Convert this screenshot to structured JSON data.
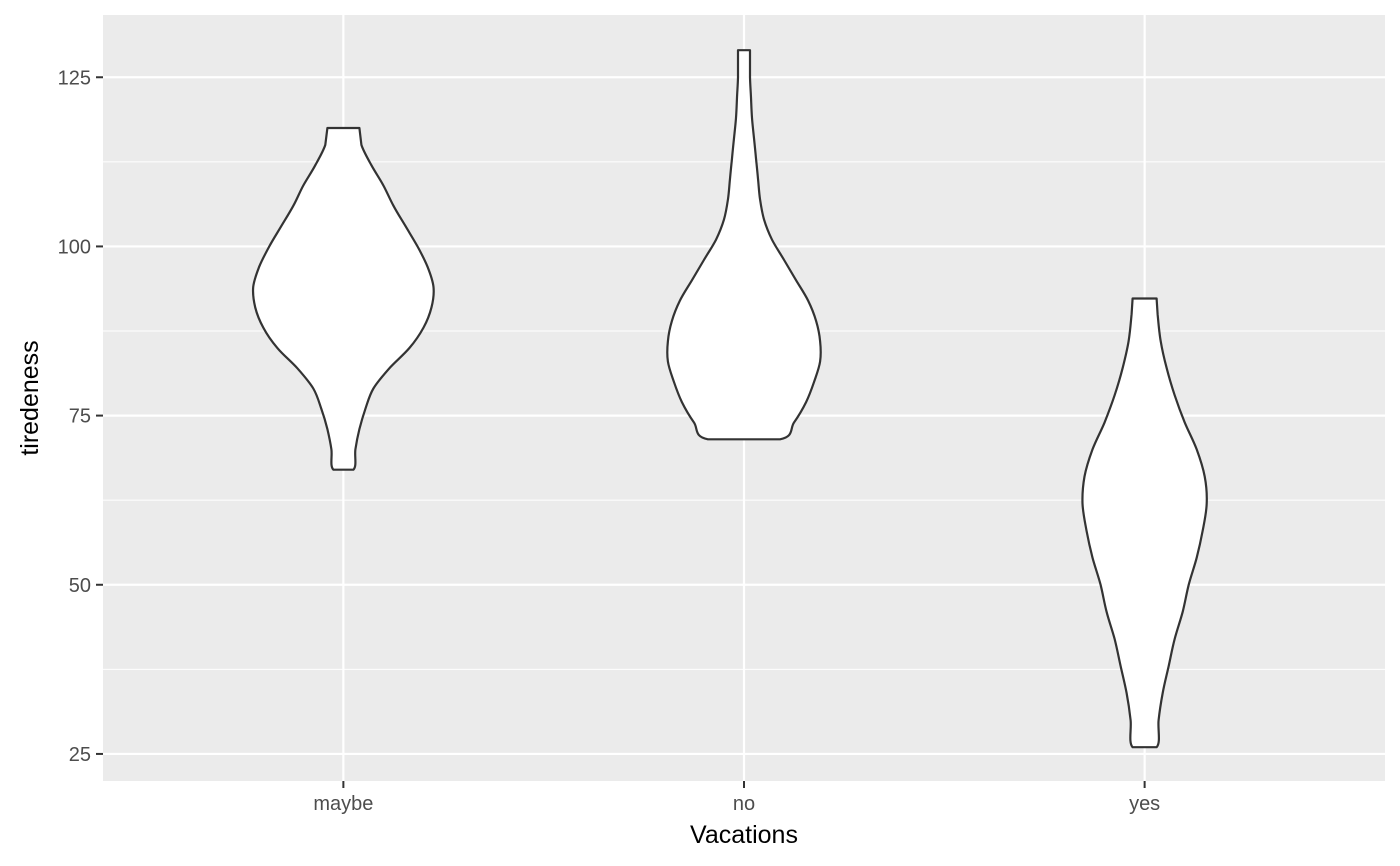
{
  "chart_data": {
    "type": "violin",
    "title": "",
    "xlabel": "Vacations",
    "ylabel": "tiredeness",
    "categories": [
      "maybe",
      "no",
      "yes"
    ],
    "ylim": [
      21,
      134.2
    ],
    "y_ticks": [
      25,
      50,
      75,
      100,
      125
    ],
    "y_tick_labels": [
      "25",
      "50",
      "75",
      "100",
      "125"
    ],
    "grid": true,
    "panel_background": "#ebebeb",
    "violin_fill": "#ffffff",
    "violin_outline": "#333333",
    "violins": [
      {
        "category": "maybe",
        "y_min": 67.0,
        "y_max": 117.5,
        "density_y": [
          67.0,
          70.0,
          73.0,
          76.0,
          79.0,
          82.0,
          85.0,
          88.0,
          91.0,
          94.0,
          97.0,
          100.0,
          103.0,
          106.0,
          109.0,
          112.0,
          115.0,
          117.5
        ],
        "density_width": [
          0.05,
          0.06,
          0.08,
          0.11,
          0.15,
          0.23,
          0.33,
          0.4,
          0.44,
          0.45,
          0.42,
          0.37,
          0.31,
          0.25,
          0.2,
          0.14,
          0.09,
          0.08
        ]
      },
      {
        "category": "no",
        "y_min": 71.5,
        "y_max": 129.0,
        "density_y": [
          71.5,
          74.0,
          77.0,
          80.0,
          83.0,
          86.0,
          89.0,
          92.0,
          95.0,
          98.0,
          101.0,
          104.0,
          107.0,
          110.0,
          113.0,
          116.0,
          119.0,
          122.0,
          125.0,
          129.0
        ],
        "density_width": [
          0.18,
          0.25,
          0.31,
          0.35,
          0.38,
          0.38,
          0.36,
          0.32,
          0.26,
          0.2,
          0.14,
          0.1,
          0.08,
          0.07,
          0.06,
          0.05,
          0.04,
          0.035,
          0.03,
          0.03
        ]
      },
      {
        "category": "yes",
        "y_min": 26.0,
        "y_max": 92.3,
        "density_y": [
          26.0,
          30.0,
          34.0,
          38.0,
          42.0,
          46.0,
          50.0,
          54.0,
          58.0,
          62.0,
          66.0,
          70.0,
          74.0,
          78.0,
          82.0,
          86.0,
          90.0,
          92.3
        ],
        "density_width": [
          0.06,
          0.07,
          0.09,
          0.12,
          0.15,
          0.19,
          0.22,
          0.26,
          0.29,
          0.31,
          0.3,
          0.26,
          0.2,
          0.15,
          0.11,
          0.08,
          0.065,
          0.06
        ]
      }
    ]
  }
}
